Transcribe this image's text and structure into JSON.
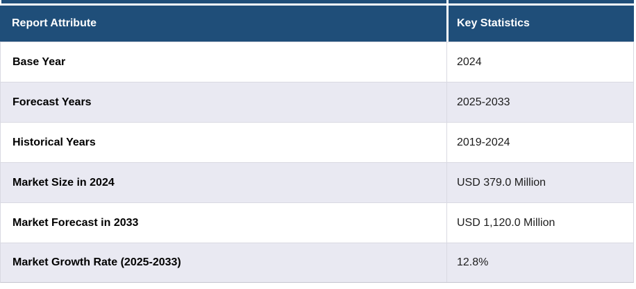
{
  "table": {
    "columns": {
      "attribute": "Report Attribute",
      "statistics": "Key Statistics"
    },
    "rows": [
      {
        "attribute": "Base Year",
        "value": "2024"
      },
      {
        "attribute": "Forecast Years",
        "value": "2025-2033"
      },
      {
        "attribute": "Historical Years",
        "value": "2019-2024"
      },
      {
        "attribute": "Market Size in 2024",
        "value": "USD 379.0 Million"
      },
      {
        "attribute": "Market Forecast in 2033",
        "value": "USD 1,120.0 Million"
      },
      {
        "attribute": "Market Growth Rate (2025-2033)",
        "value": "12.8%"
      }
    ]
  },
  "colors": {
    "header_bg": "#1F4E79",
    "header_text": "#FFFFFF",
    "row_alt_bg": "#E9E9F2",
    "row_white_bg": "#FFFFFF",
    "row_border": "#D9D9E2",
    "bottom_border": "#C4C4CE",
    "label_text": "#000000",
    "value_text": "#1C1C1C"
  }
}
